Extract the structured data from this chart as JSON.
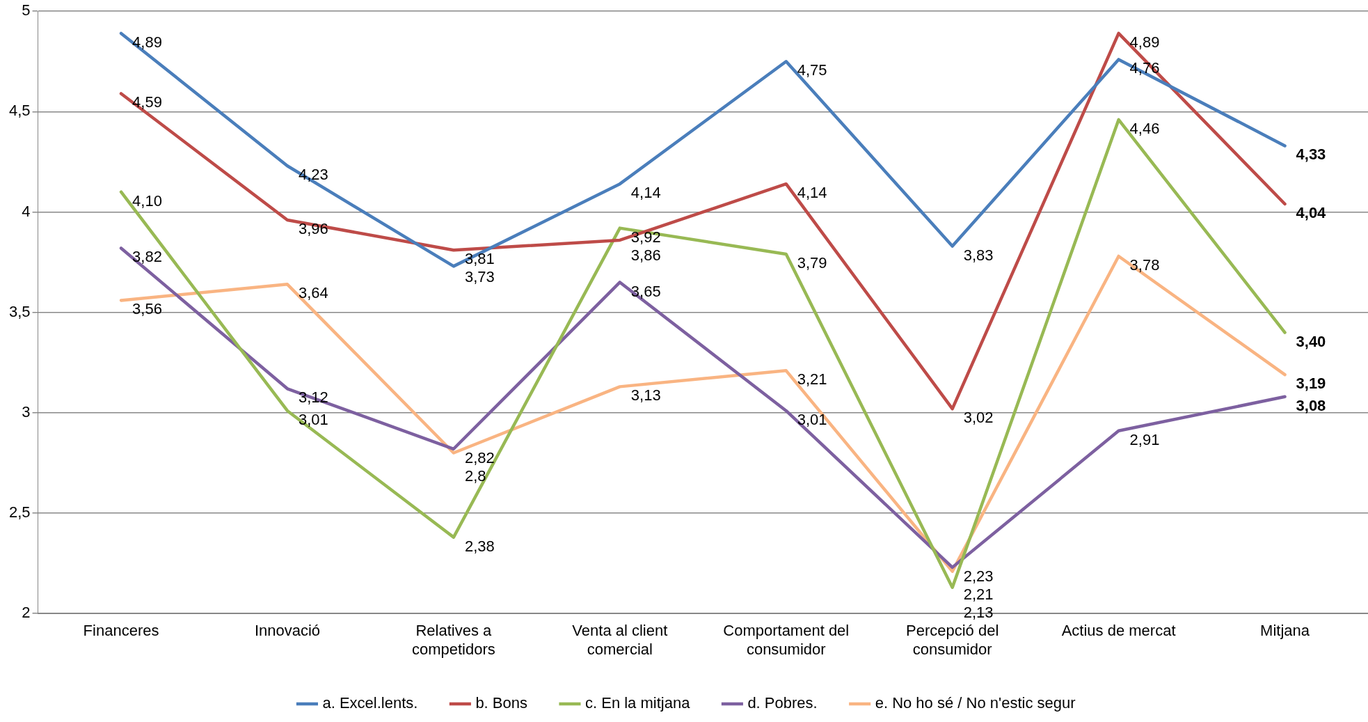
{
  "chart_data": {
    "type": "line",
    "categories": [
      "Financeres",
      "Innovació",
      "Relatives a competidors",
      "Venta al client comercial",
      "Comportament del consumidor",
      "Percepció del consumidor",
      "Actius de mercat",
      "Mitjana"
    ],
    "series": [
      {
        "name": "a. Excel.lents.",
        "color": "#4a7ebb",
        "values": [
          4.89,
          4.23,
          3.73,
          4.14,
          4.75,
          3.83,
          4.76,
          4.33
        ],
        "value_labels": [
          "4,89",
          "4,23",
          "3,73",
          "4,14",
          "4,75",
          "3,83",
          "4,76",
          "4,33"
        ]
      },
      {
        "name": "b. Bons",
        "color": "#be4b48",
        "values": [
          4.59,
          3.96,
          3.81,
          3.86,
          4.14,
          3.02,
          4.89,
          4.04
        ],
        "value_labels": [
          "4,59",
          "3,96",
          "3,81",
          "3,86",
          "4,14",
          "3,02",
          "4,89",
          "4,04"
        ]
      },
      {
        "name": "c. En la mitjana",
        "color": "#98b954",
        "values": [
          4.1,
          3.01,
          2.38,
          3.92,
          3.79,
          2.13,
          4.46,
          3.4
        ],
        "value_labels": [
          "4,10",
          "3,01",
          "2,38",
          "3,92",
          "3,79",
          "2,13",
          "4,46",
          "3,40"
        ]
      },
      {
        "name": "d. Pobres.",
        "color": "#7d60a0",
        "values": [
          3.82,
          3.12,
          2.82,
          3.65,
          3.01,
          2.23,
          2.91,
          3.08
        ],
        "value_labels": [
          "3,82",
          "3,12",
          "2,82",
          "3,65",
          "3,01",
          "2,23",
          "2,91",
          "3,08"
        ]
      },
      {
        "name": "e. No ho sé / No n'estic segur",
        "color": "#f9b482",
        "values": [
          3.56,
          3.64,
          2.8,
          3.13,
          3.21,
          2.21,
          3.78,
          3.19
        ],
        "value_labels": [
          "3,56",
          "3,64",
          "2,8",
          "3,13",
          "3,21",
          "2,21",
          "3,78",
          "3,19"
        ]
      }
    ],
    "ylim": [
      2,
      5
    ],
    "yticks": [
      {
        "value": 2,
        "label": "2"
      },
      {
        "value": 2.5,
        "label": "2,5"
      },
      {
        "value": 3,
        "label": "3"
      },
      {
        "value": 3.5,
        "label": "3,5"
      },
      {
        "value": 4,
        "label": "4"
      },
      {
        "value": 4.5,
        "label": "4,5"
      },
      {
        "value": 5,
        "label": "5"
      }
    ],
    "grid": "y",
    "legend": "bottom",
    "marker": "none",
    "line_style": "solid"
  }
}
